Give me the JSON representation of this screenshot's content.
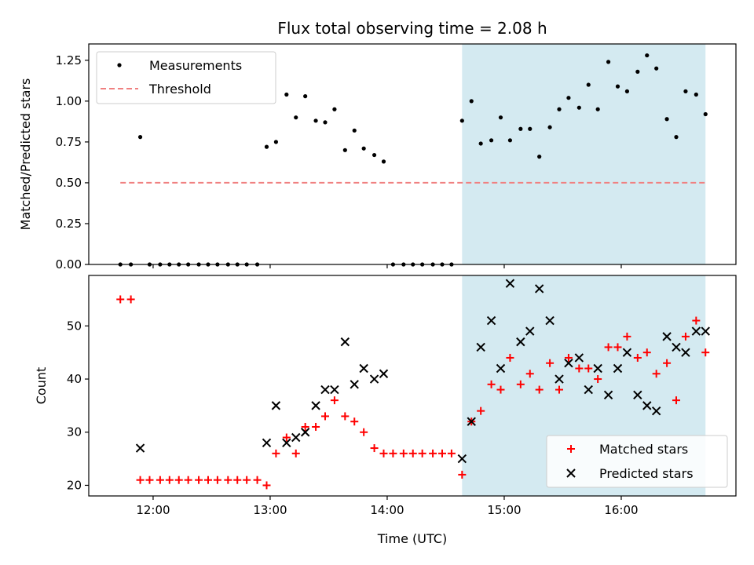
{
  "chart_data": {
    "type": "scatter",
    "title": "Flux total observing time = 2.08 h",
    "xlabel": "Time (UTC)",
    "x_range": [
      11.45,
      16.98
    ],
    "x_ticks": [
      12,
      13,
      14,
      15,
      16
    ],
    "x_tick_labels": [
      "12:00",
      "13:00",
      "14:00",
      "15:00",
      "16:00"
    ],
    "highlight_span": [
      14.64,
      16.72
    ],
    "highlight_color": "#d4eaf1",
    "top": {
      "ylabel": "Matched/Predicted stars",
      "ylim": [
        0,
        1.35
      ],
      "y_ticks": [
        0,
        0.25,
        0.5,
        0.75,
        1.0,
        1.25
      ],
      "y_tick_labels": [
        "0.00",
        "0.25",
        "0.50",
        "0.75",
        "1.00",
        "1.25"
      ],
      "legend": {
        "position": "top-left",
        "measurements_label": "Measurements",
        "threshold_label": "Threshold"
      },
      "threshold": {
        "value": 0.5,
        "x_range": [
          11.72,
          16.72
        ],
        "color": "#f08080"
      },
      "measurements": {
        "color": "#000000",
        "x": [
          11.72,
          11.81,
          11.89,
          11.97,
          12.06,
          12.14,
          12.22,
          12.3,
          12.39,
          12.47,
          12.55,
          12.64,
          12.72,
          12.8,
          12.89,
          12.97,
          13.05,
          13.14,
          13.22,
          13.3,
          13.39,
          13.47,
          13.55,
          13.64,
          13.72,
          13.8,
          13.89,
          13.97,
          14.05,
          14.14,
          14.22,
          14.3,
          14.39,
          14.47,
          14.55,
          14.64,
          14.72,
          14.8,
          14.89,
          14.97,
          15.05,
          15.14,
          15.22,
          15.3,
          15.39,
          15.47,
          15.55,
          15.64,
          15.72,
          15.8,
          15.89,
          15.97,
          16.05,
          16.14,
          16.22,
          16.3,
          16.39,
          16.47,
          16.55,
          16.64,
          16.72
        ],
        "y": [
          0,
          0,
          0.78,
          0,
          0,
          0,
          0,
          0,
          0,
          0,
          0,
          0,
          0,
          0,
          0,
          0.72,
          0.75,
          1.04,
          0.9,
          1.03,
          0.88,
          0.87,
          0.95,
          0.7,
          0.82,
          0.71,
          0.67,
          0.63,
          0,
          0,
          0,
          0,
          0,
          0,
          0,
          0.88,
          1.0,
          0.74,
          0.76,
          0.9,
          0.76,
          0.83,
          0.83,
          0.66,
          0.84,
          0.95,
          1.02,
          0.96,
          1.1,
          0.95,
          1.24,
          1.09,
          1.06,
          1.18,
          1.28,
          1.2,
          0.89,
          0.78,
          1.06,
          1.04,
          0.92
        ]
      }
    },
    "bottom": {
      "ylabel": "Count",
      "ylim": [
        18,
        59.5
      ],
      "y_ticks": [
        20,
        30,
        40,
        50
      ],
      "y_tick_labels": [
        "20",
        "30",
        "40",
        "50"
      ],
      "legend": {
        "position": "lower-right"
      },
      "series": [
        {
          "name": "Matched stars",
          "marker": "plus",
          "color": "#ff0000",
          "x": [
            11.72,
            11.81,
            11.89,
            11.97,
            12.06,
            12.14,
            12.22,
            12.3,
            12.39,
            12.47,
            12.55,
            12.64,
            12.72,
            12.8,
            12.89,
            12.97,
            13.05,
            13.14,
            13.22,
            13.3,
            13.39,
            13.47,
            13.55,
            13.64,
            13.72,
            13.8,
            13.89,
            13.97,
            14.05,
            14.14,
            14.22,
            14.3,
            14.39,
            14.47,
            14.55,
            14.64,
            14.72,
            14.8,
            14.89,
            14.97,
            15.05,
            15.14,
            15.22,
            15.3,
            15.39,
            15.47,
            15.55,
            15.64,
            15.72,
            15.8,
            15.89,
            15.97,
            16.05,
            16.14,
            16.22,
            16.3,
            16.39,
            16.47,
            16.55,
            16.64,
            16.72
          ],
          "y": [
            55,
            55,
            21,
            21,
            21,
            21,
            21,
            21,
            21,
            21,
            21,
            21,
            21,
            21,
            21,
            20,
            26,
            29,
            26,
            31,
            31,
            33,
            36,
            33,
            32,
            30,
            27,
            26,
            26,
            26,
            26,
            26,
            26,
            26,
            26,
            22,
            32,
            34,
            39,
            38,
            44,
            39,
            41,
            38,
            43,
            38,
            44,
            42,
            42,
            40,
            46,
            46,
            48,
            44,
            45,
            41,
            43,
            36,
            48,
            51,
            45
          ]
        },
        {
          "name": "Predicted stars",
          "marker": "x",
          "color": "#000000",
          "x": [
            11.89,
            12.97,
            13.05,
            13.14,
            13.22,
            13.3,
            13.39,
            13.47,
            13.55,
            13.64,
            13.72,
            13.8,
            13.89,
            13.97,
            14.64,
            14.72,
            14.8,
            14.89,
            14.97,
            15.05,
            15.14,
            15.22,
            15.3,
            15.39,
            15.47,
            15.55,
            15.64,
            15.72,
            15.8,
            15.89,
            15.97,
            16.05,
            16.14,
            16.22,
            16.3,
            16.39,
            16.47,
            16.55,
            16.64,
            16.72
          ],
          "y": [
            27,
            28,
            35,
            28,
            29,
            30,
            35,
            38,
            38,
            47,
            39,
            42,
            40,
            41,
            25,
            32,
            46,
            51,
            42,
            58,
            47,
            49,
            57,
            51,
            40,
            43,
            44,
            38,
            42,
            37,
            42,
            45,
            37,
            35,
            34,
            48,
            46,
            45,
            49,
            49
          ]
        }
      ]
    }
  }
}
